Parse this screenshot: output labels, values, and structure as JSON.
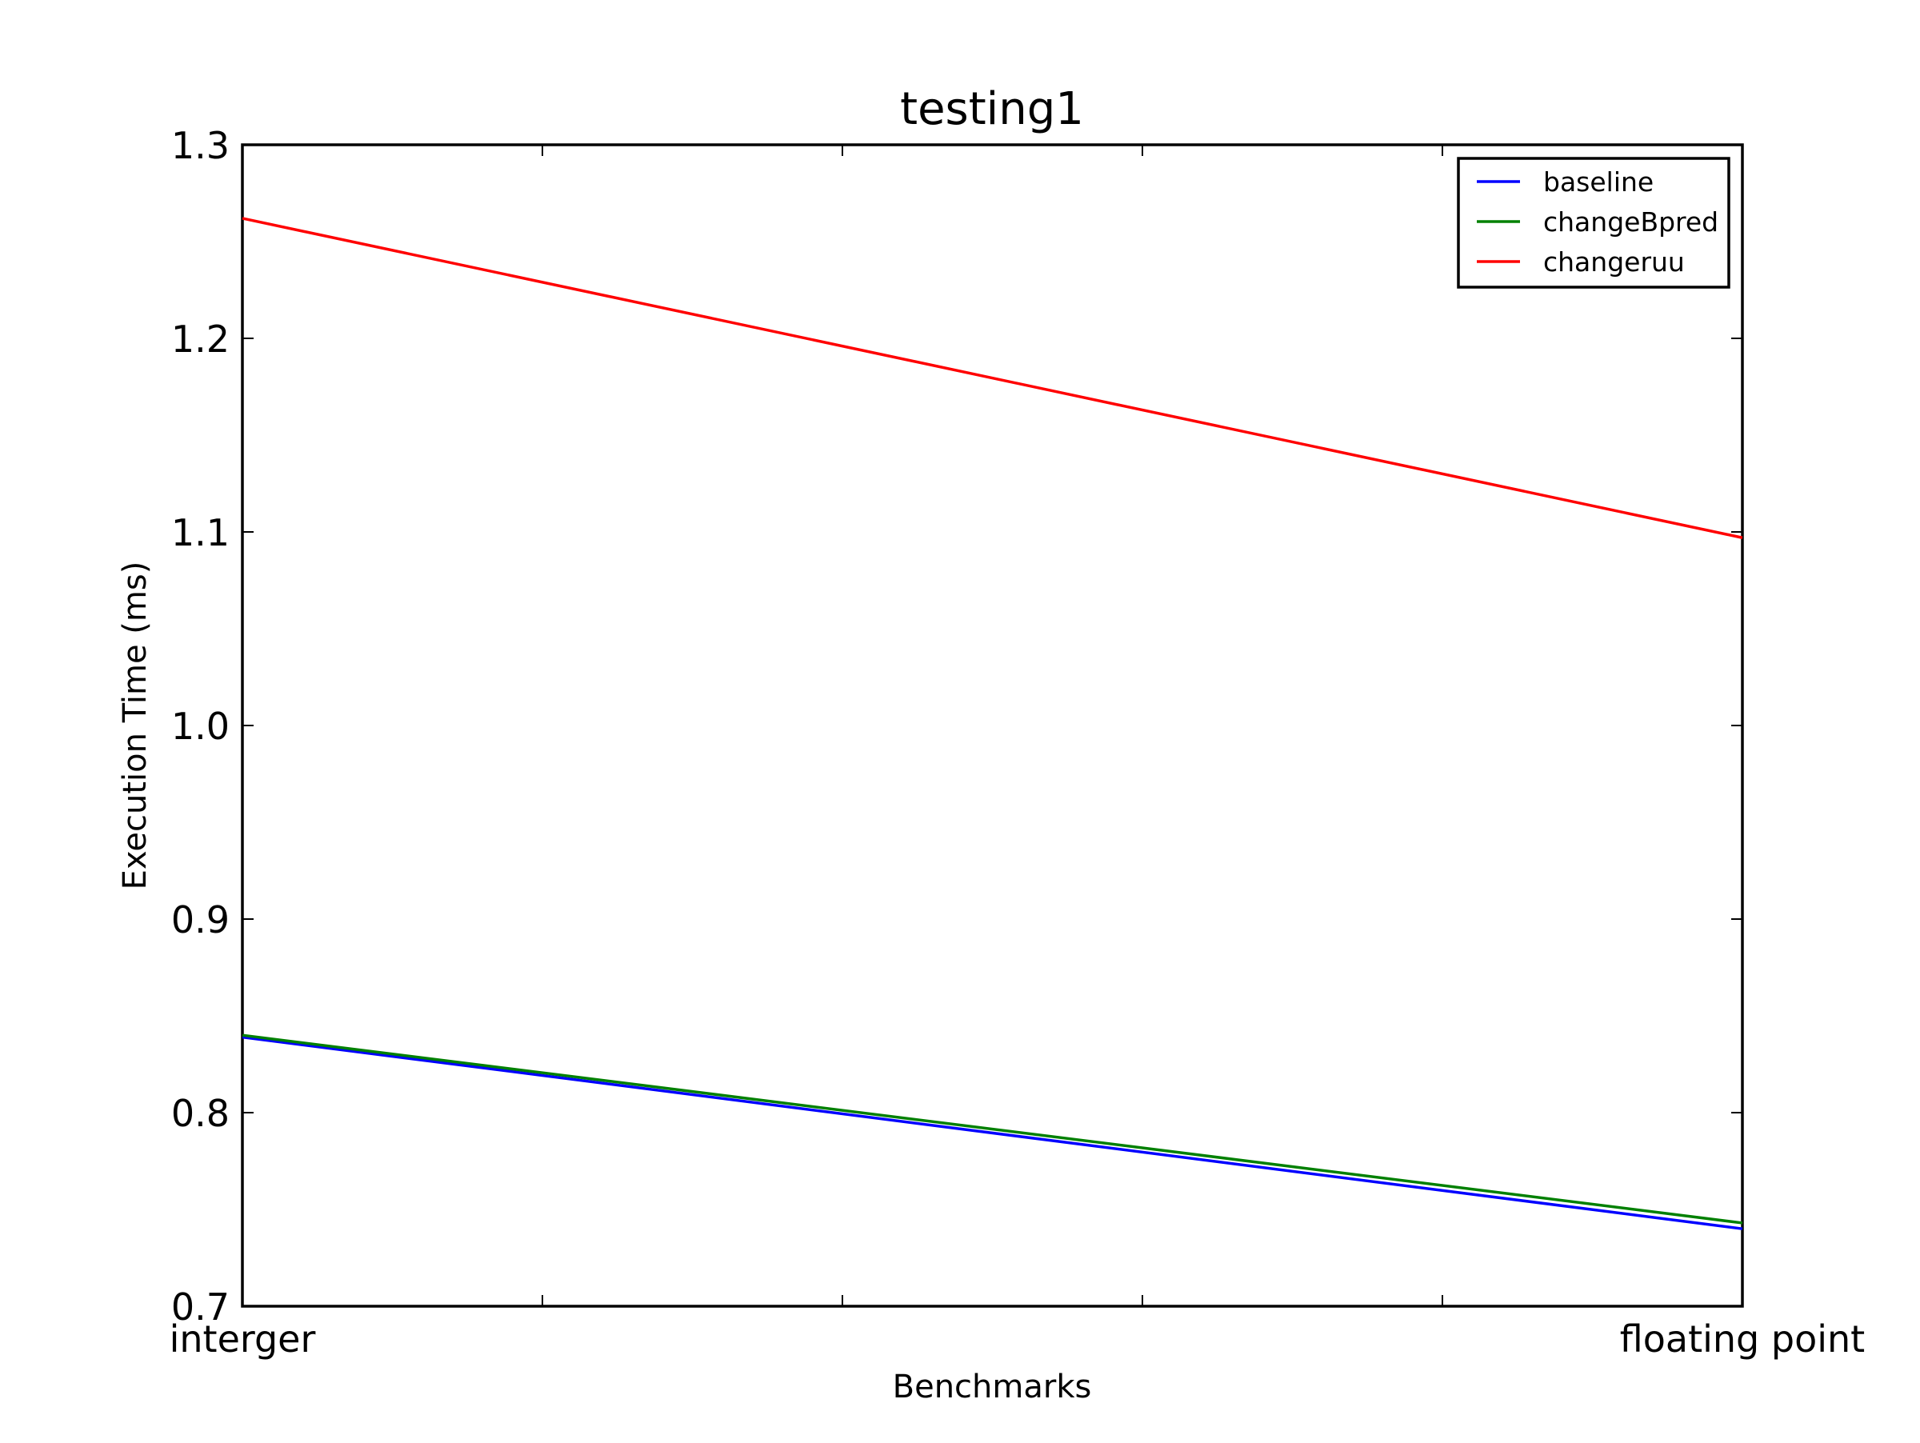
{
  "chart_data": {
    "type": "line",
    "title": "testing1",
    "xlabel": "Benchmarks",
    "ylabel": "Execution Time (ms)",
    "categories": [
      "interger",
      "floating point"
    ],
    "ylim": [
      0.7,
      1.3
    ],
    "yticks": [
      0.7,
      0.8,
      0.9,
      1.0,
      1.1,
      1.2,
      1.3
    ],
    "ytick_labels": [
      "0.7",
      "0.8",
      "0.9",
      "1.0",
      "1.1",
      "1.2",
      "1.3"
    ],
    "minor_xticks_count": 6,
    "grid": false,
    "legend_position": "top-right",
    "series": [
      {
        "name": "baseline",
        "color": "#0000ff",
        "values": [
          0.839,
          0.74
        ]
      },
      {
        "name": "changeBpred",
        "color": "#008000",
        "values": [
          0.84,
          0.743
        ]
      },
      {
        "name": "changeruu",
        "color": "#ff0000",
        "values": [
          1.262,
          1.097
        ]
      }
    ]
  }
}
